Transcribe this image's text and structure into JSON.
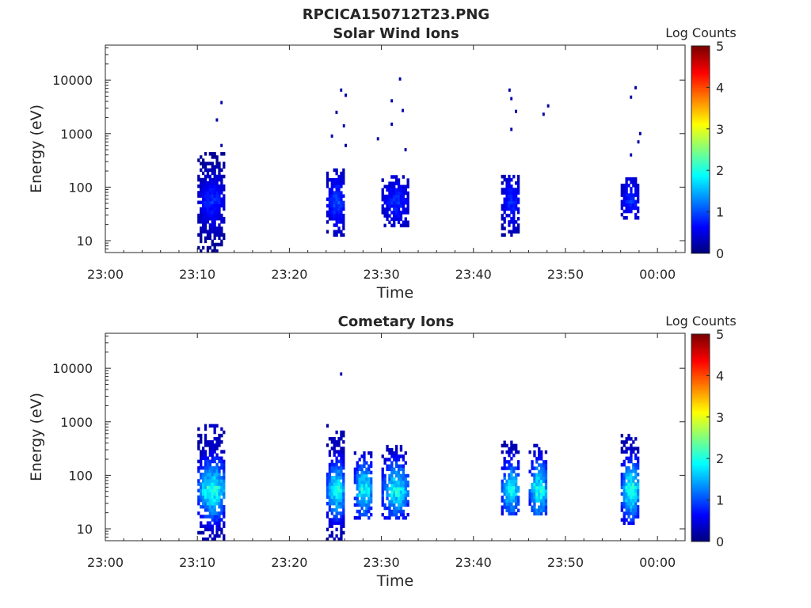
{
  "figure_title": "RPCICA150712T23.PNG",
  "colorbar": {
    "label": "Log Counts",
    "ticks": [
      "0",
      "1",
      "2",
      "3",
      "4",
      "5"
    ],
    "range": [
      0,
      5
    ],
    "colormap": "jet"
  },
  "colors": {
    "axis": "#262626",
    "background": "#ffffff"
  },
  "chart_data": [
    {
      "type": "heatmap",
      "title": "Solar Wind Ions",
      "xlabel": "Time",
      "ylabel": "Energy (eV)",
      "x_ticks": [
        "23:00",
        "23:10",
        "23:20",
        "23:30",
        "23:40",
        "23:50",
        "00:00"
      ],
      "y_ticks": [
        "10",
        "100",
        "1000",
        "10000"
      ],
      "y_scale": "log",
      "y_range_eV": [
        6,
        45000
      ],
      "x_range": [
        "23:00",
        "00:03"
      ],
      "z_label": "Log Counts",
      "z_range": [
        0,
        5
      ],
      "bursts": [
        {
          "start": "23:10",
          "end": "23:13",
          "energy_low_eV": 6,
          "energy_high_eV": 400,
          "peak_log_counts": 1.0
        },
        {
          "start": "23:24",
          "end": "23:26",
          "energy_low_eV": 12,
          "energy_high_eV": 200,
          "peak_log_counts": 1.2
        },
        {
          "start": "23:30",
          "end": "23:33",
          "energy_low_eV": 18,
          "energy_high_eV": 150,
          "peak_log_counts": 1.0
        },
        {
          "start": "23:43",
          "end": "23:45",
          "energy_low_eV": 12,
          "energy_high_eV": 150,
          "peak_log_counts": 1.0
        },
        {
          "start": "23:56",
          "end": "23:58",
          "energy_low_eV": 25,
          "energy_high_eV": 150,
          "peak_log_counts": 1.0
        }
      ],
      "sparse_points": [
        {
          "t": "23:12.5",
          "e": 3800
        },
        {
          "t": "23:12.0",
          "e": 1800
        },
        {
          "t": "23:12.5",
          "e": 600
        },
        {
          "t": "23:25.5",
          "e": 6500
        },
        {
          "t": "23:26.0",
          "e": 5200
        },
        {
          "t": "23:25.0",
          "e": 2500
        },
        {
          "t": "23:25.8",
          "e": 1400
        },
        {
          "t": "23:24.5",
          "e": 900
        },
        {
          "t": "23:26.0",
          "e": 600
        },
        {
          "t": "23:31.9",
          "e": 10500
        },
        {
          "t": "23:31.0",
          "e": 4100
        },
        {
          "t": "23:32.2",
          "e": 2700
        },
        {
          "t": "23:31.0",
          "e": 1500
        },
        {
          "t": "23:29.5",
          "e": 800
        },
        {
          "t": "23:32.5",
          "e": 500
        },
        {
          "t": "23:43.8",
          "e": 6500
        },
        {
          "t": "23:44.0",
          "e": 4500
        },
        {
          "t": "23:44.5",
          "e": 2600
        },
        {
          "t": "23:48.0",
          "e": 3300
        },
        {
          "t": "23:47.5",
          "e": 2300
        },
        {
          "t": "23:44.0",
          "e": 1200
        },
        {
          "t": "23:57.5",
          "e": 7200
        },
        {
          "t": "23:57.0",
          "e": 4800
        },
        {
          "t": "23:58.0",
          "e": 1000
        },
        {
          "t": "23:57.8",
          "e": 700
        },
        {
          "t": "23:57.0",
          "e": 400
        }
      ]
    },
    {
      "type": "heatmap",
      "title": "Cometary Ions",
      "xlabel": "Time",
      "ylabel": "Energy (eV)",
      "x_ticks": [
        "23:00",
        "23:10",
        "23:20",
        "23:30",
        "23:40",
        "23:50",
        "00:00"
      ],
      "y_ticks": [
        "10",
        "100",
        "1000",
        "10000"
      ],
      "y_scale": "log",
      "y_range_eV": [
        6,
        45000
      ],
      "x_range": [
        "23:00",
        "00:03"
      ],
      "z_label": "Log Counts",
      "z_range": [
        0,
        5
      ],
      "bursts": [
        {
          "start": "23:10",
          "end": "23:13",
          "energy_low_eV": 6,
          "energy_high_eV": 800,
          "peak_log_counts": 2.6
        },
        {
          "start": "23:24",
          "end": "23:26",
          "energy_low_eV": 6,
          "energy_high_eV": 900,
          "peak_log_counts": 2.4
        },
        {
          "start": "23:27",
          "end": "23:29",
          "energy_low_eV": 15,
          "energy_high_eV": 250,
          "peak_log_counts": 2.4
        },
        {
          "start": "23:30",
          "end": "23:33",
          "energy_low_eV": 15,
          "energy_high_eV": 350,
          "peak_log_counts": 2.3
        },
        {
          "start": "23:43",
          "end": "23:45",
          "energy_low_eV": 18,
          "energy_high_eV": 400,
          "peak_log_counts": 2.3
        },
        {
          "start": "23:46",
          "end": "23:48",
          "energy_low_eV": 18,
          "energy_high_eV": 350,
          "peak_log_counts": 2.5
        },
        {
          "start": "23:56",
          "end": "23:58",
          "energy_low_eV": 12,
          "energy_high_eV": 550,
          "peak_log_counts": 2.6
        }
      ],
      "sparse_points": [
        {
          "t": "23:25.5",
          "e": 7800
        }
      ]
    }
  ]
}
